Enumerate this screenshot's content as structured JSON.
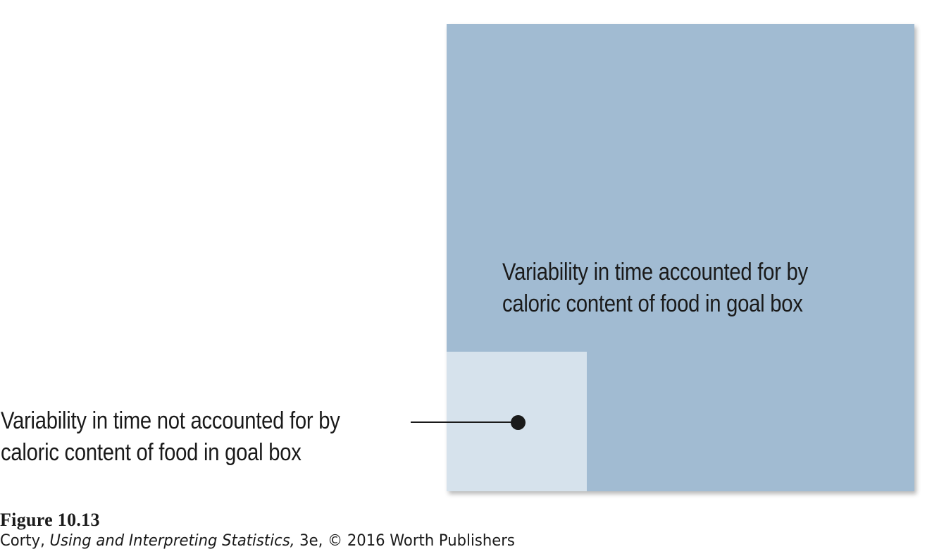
{
  "diagram": {
    "accounted_label_lines": [
      "Variability in time accounted for by",
      "caloric content of food in goal box"
    ],
    "unaccounted_label_lines": [
      "Variability in time not accounted for by",
      "caloric content of food in goal box"
    ]
  },
  "caption": {
    "title": "Figure 10.13",
    "author": "Corty, ",
    "book_title": "Using and Interpreting Statistics,",
    "edition_and_copyright": " 3e, © 2016 Worth Publishers"
  },
  "colors": {
    "accounted_fill": "#a1bbd2",
    "unaccounted_fill": "#d6e2ec",
    "text": "#1a1a1a",
    "leader": "#1a1a1a"
  }
}
